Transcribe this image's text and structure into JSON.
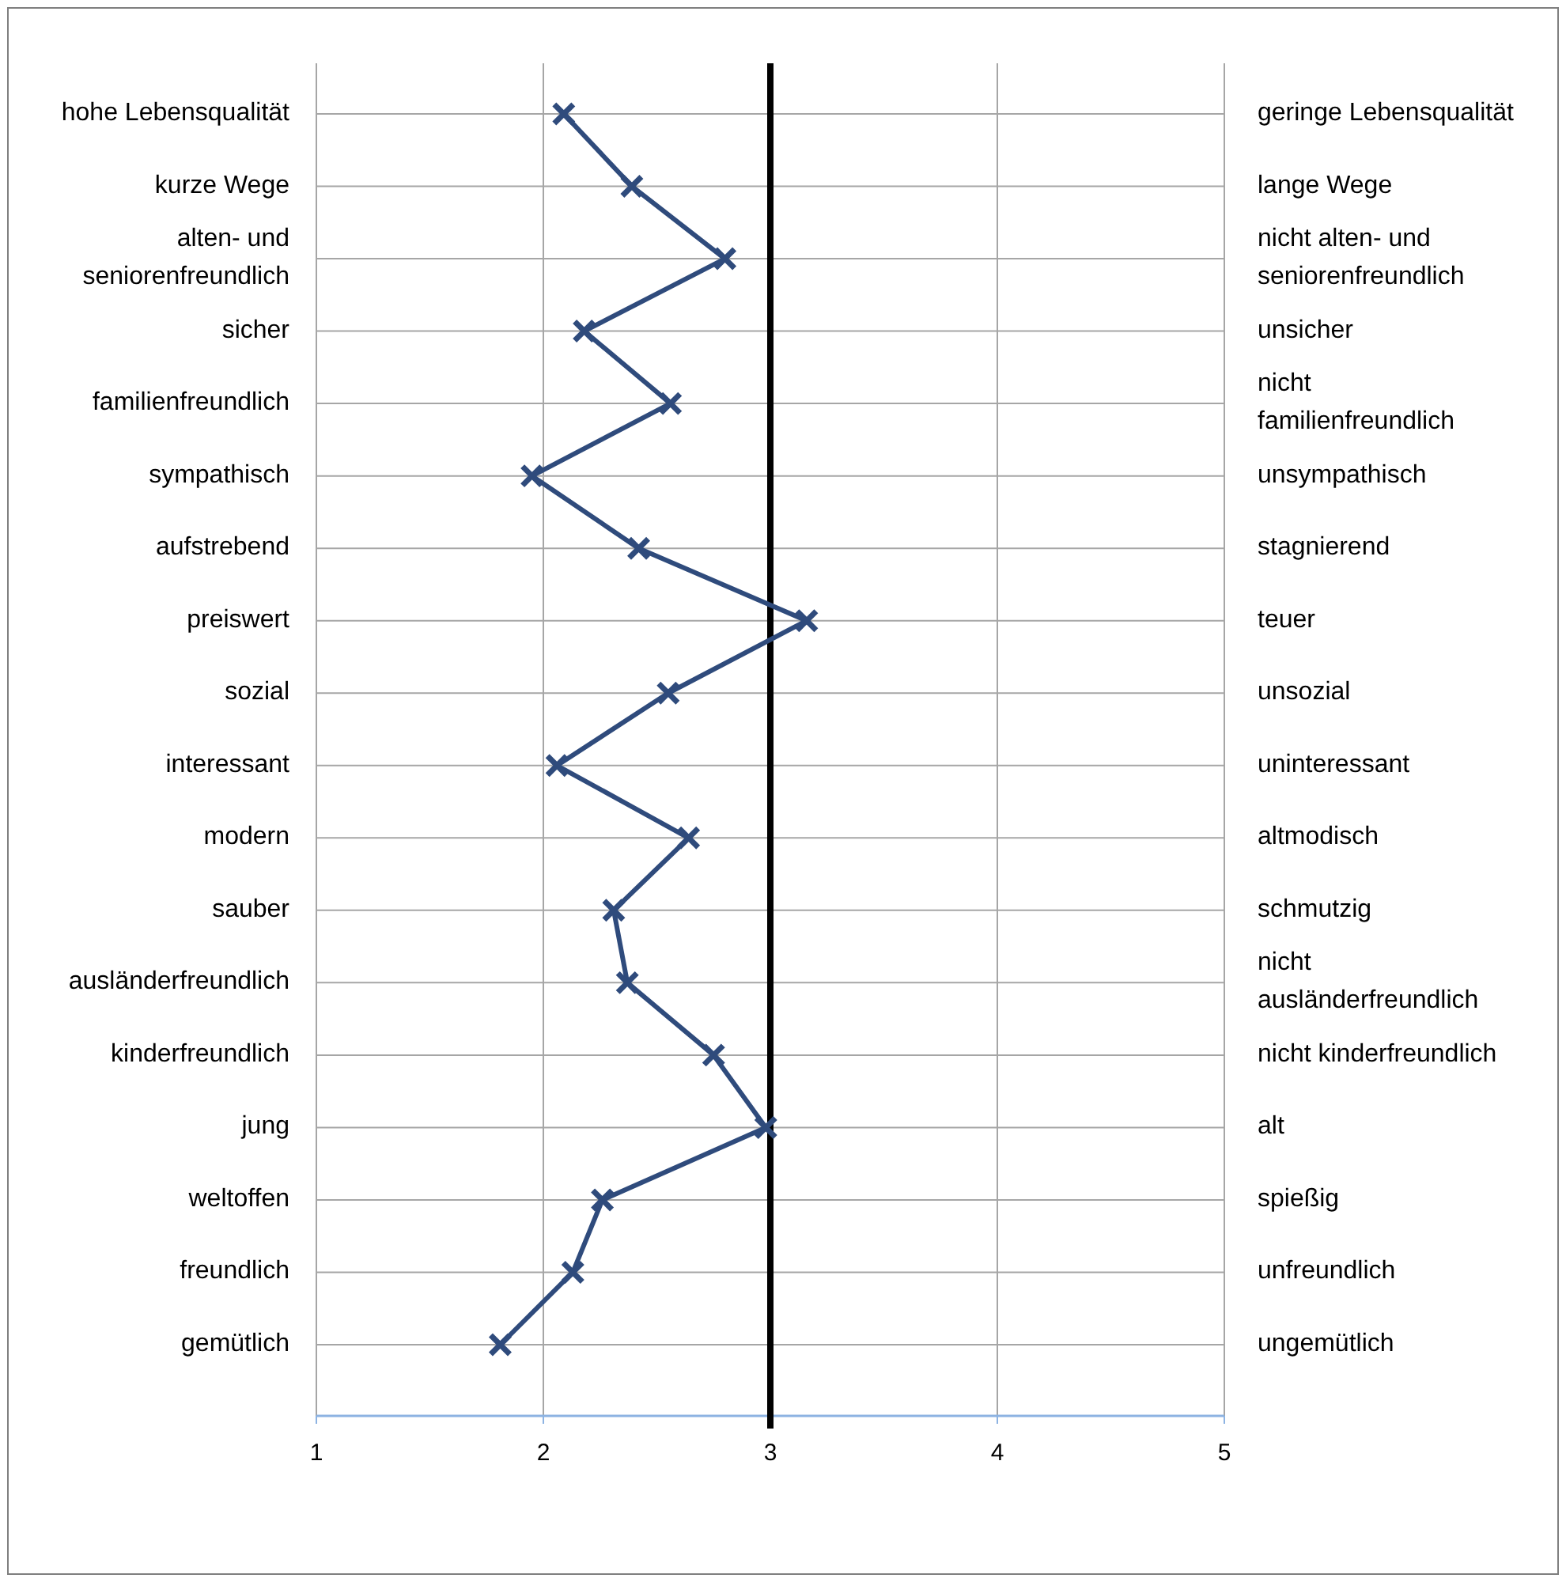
{
  "chart_data": {
    "type": "line",
    "orientation": "horizontal",
    "categories": [
      "hohe Lebensqualität",
      "kurze Wege",
      "alten- und seniorenfreundlich",
      "sicher",
      "familienfreundlich",
      "sympathisch",
      "aufstrebend",
      "preiswert",
      "sozial",
      "interessant",
      "modern",
      "sauber",
      "ausländerfreundlich",
      "kinderfreundlich",
      "jung",
      "weltoffen",
      "freundlich",
      "gemütlich"
    ],
    "y2_categories": [
      "geringe Lebensqualität",
      "lange Wege",
      "nicht alten- und seniorenfreundlich",
      "unsicher",
      "nicht familienfreundlich",
      "unsympathisch",
      "stagnierend",
      "teuer",
      "unsozial",
      "uninteressant",
      "altmodisch",
      "schmutzig",
      "nicht ausländerfreundlich",
      "nicht kinderfreundlich",
      "alt",
      "spießig",
      "unfreundlich",
      "ungemütlich"
    ],
    "series": [
      {
        "color": "#2f4b7c",
        "values": [
          2.09,
          2.39,
          2.8,
          2.18,
          2.56,
          1.95,
          2.42,
          3.16,
          2.55,
          2.06,
          2.64,
          2.31,
          2.37,
          2.75,
          2.98,
          2.26,
          2.13,
          1.81
        ]
      }
    ],
    "xlim": [
      1,
      5
    ],
    "xticks": [
      1,
      2,
      3,
      4,
      5
    ],
    "grid": true,
    "marker": "cross",
    "line_style": "solid",
    "ref_lines": [
      {
        "axis": "x",
        "value": 3,
        "color": "#000000"
      }
    ]
  }
}
